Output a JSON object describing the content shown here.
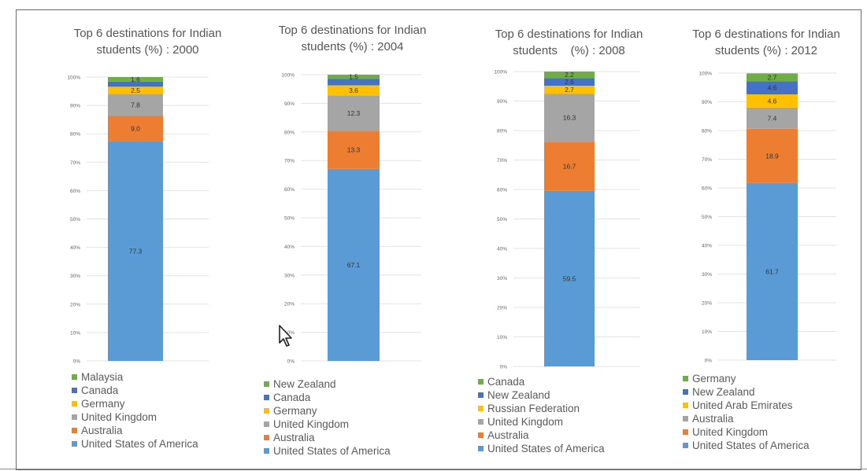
{
  "colors": {
    "United States of America": "#5b9bd5",
    "Australia": "#ed7d31",
    "United Kingdom": "#a5a5a5",
    "Germany": "#ffc000",
    "Canada": "#4472c4",
    "Malaysia": "#70ad47",
    "New Zealand": "#4472c4",
    "Russian Federation": "#ffc000",
    "United Arab Emirates": "#ffc000",
    "Germany_2012": "#70ad47",
    "New Zealand_2004": "#70ad47",
    "Canada_2008": "#70ad47",
    "New Zealand_2008": "#4472c4",
    "Australia_2008": "#ed7d31",
    "Australia_2012": "#a5a5a5",
    "United Kingdom_2012": "#ed7d31"
  },
  "chart_data": [
    {
      "type": "bar",
      "stacked": true,
      "title": "Top 6 destinations for Indian students (%) : 2000",
      "title_lines": [
        "Top 6 destinations for Indian",
        "students (%) : 2000"
      ],
      "ylim": [
        0,
        100
      ],
      "yticks": [
        "0%",
        "10%",
        "20%",
        "30%",
        "40%",
        "50%",
        "60%",
        "70%",
        "80%",
        "90%",
        "100%"
      ],
      "grid": true,
      "legend_position": "bottom",
      "series": [
        {
          "name": "United States of America",
          "value": 77.3,
          "label": "77.3",
          "color": "#5b9bd5"
        },
        {
          "name": "Australia",
          "value": 9.0,
          "label": "9.0",
          "color": "#ed7d31"
        },
        {
          "name": "United Kingdom",
          "value": 7.8,
          "label": "7.8",
          "color": "#a5a5a5"
        },
        {
          "name": "Germany",
          "value": 2.5,
          "label": "2.5",
          "color": "#ffc000"
        },
        {
          "name": "Canada",
          "value": 1.8,
          "label": "",
          "color": "#4472c4"
        },
        {
          "name": "Malaysia",
          "value": 1.6,
          "label": "1.6",
          "color": "#70ad47"
        }
      ]
    },
    {
      "type": "bar",
      "stacked": true,
      "title": "Top 6 destinations for Indian students (%) : 2004",
      "title_lines": [
        "Top 6 destinations for Indian",
        "students (%) : 2004"
      ],
      "ylim": [
        0,
        100
      ],
      "yticks": [
        "0%",
        "10%",
        "20%",
        "30%",
        "40%",
        "50%",
        "60%",
        "70%",
        "80%",
        "90%",
        "100%"
      ],
      "grid": true,
      "legend_position": "bottom",
      "series": [
        {
          "name": "United States of America",
          "value": 67.1,
          "label": "67.1",
          "color": "#5b9bd5"
        },
        {
          "name": "Australia",
          "value": 13.3,
          "label": "13.3",
          "color": "#ed7d31"
        },
        {
          "name": "United Kingdom",
          "value": 12.3,
          "label": "12.3",
          "color": "#a5a5a5"
        },
        {
          "name": "Germany",
          "value": 3.6,
          "label": "3.6",
          "color": "#ffc000"
        },
        {
          "name": "Canada",
          "value": 2.2,
          "label": "",
          "color": "#4472c4"
        },
        {
          "name": "New Zealand",
          "value": 1.5,
          "label": "1.5",
          "color": "#70ad47"
        }
      ]
    },
    {
      "type": "bar",
      "stacked": true,
      "title": "Top 6 destinations for Indian students (%) : 2008",
      "title_lines": [
        "Top 6 destinations for Indian",
        "students    (%) : 2008"
      ],
      "ylim": [
        0,
        100
      ],
      "yticks": [
        "0%",
        "10%",
        "20%",
        "30%",
        "40%",
        "50%",
        "60%",
        "70%",
        "80%",
        "90%",
        "100%"
      ],
      "grid": true,
      "legend_position": "bottom",
      "series": [
        {
          "name": "United States of America",
          "value": 59.5,
          "label": "59.5",
          "color": "#5b9bd5"
        },
        {
          "name": "Australia",
          "value": 16.7,
          "label": "16.7",
          "color": "#ed7d31"
        },
        {
          "name": "United Kingdom",
          "value": 16.3,
          "label": "16.3",
          "color": "#a5a5a5"
        },
        {
          "name": "Russian Federation",
          "value": 2.7,
          "label": "2.7",
          "color": "#ffc000"
        },
        {
          "name": "New Zealand",
          "value": 2.6,
          "label": "2.6",
          "color": "#4472c4"
        },
        {
          "name": "Canada",
          "value": 2.2,
          "label": "2.2",
          "color": "#70ad47"
        }
      ]
    },
    {
      "type": "bar",
      "stacked": true,
      "title": "Top 6 destinations for Indian students (%) : 2012",
      "title_lines": [
        "Top 6 destinations for Indian",
        "students (%) : 2012"
      ],
      "ylim": [
        0,
        100
      ],
      "yticks": [
        "0%",
        "10%",
        "20%",
        "30%",
        "40%",
        "50%",
        "60%",
        "70%",
        "80%",
        "90%",
        "100%"
      ],
      "grid": true,
      "legend_position": "bottom",
      "series": [
        {
          "name": "United States of America",
          "value": 61.7,
          "label": "61.7",
          "color": "#5b9bd5"
        },
        {
          "name": "United Kingdom",
          "value": 18.9,
          "label": "18.9",
          "color": "#ed7d31"
        },
        {
          "name": "Australia",
          "value": 7.4,
          "label": "7.4",
          "color": "#a5a5a5"
        },
        {
          "name": "United Arab Emirates",
          "value": 4.6,
          "label": "4.6",
          "color": "#ffc000"
        },
        {
          "name": "New Zealand",
          "value": 4.6,
          "label": "4.6",
          "color": "#4472c4"
        },
        {
          "name": "Germany",
          "value": 2.7,
          "label": "2.7",
          "color": "#70ad47"
        }
      ]
    }
  ]
}
